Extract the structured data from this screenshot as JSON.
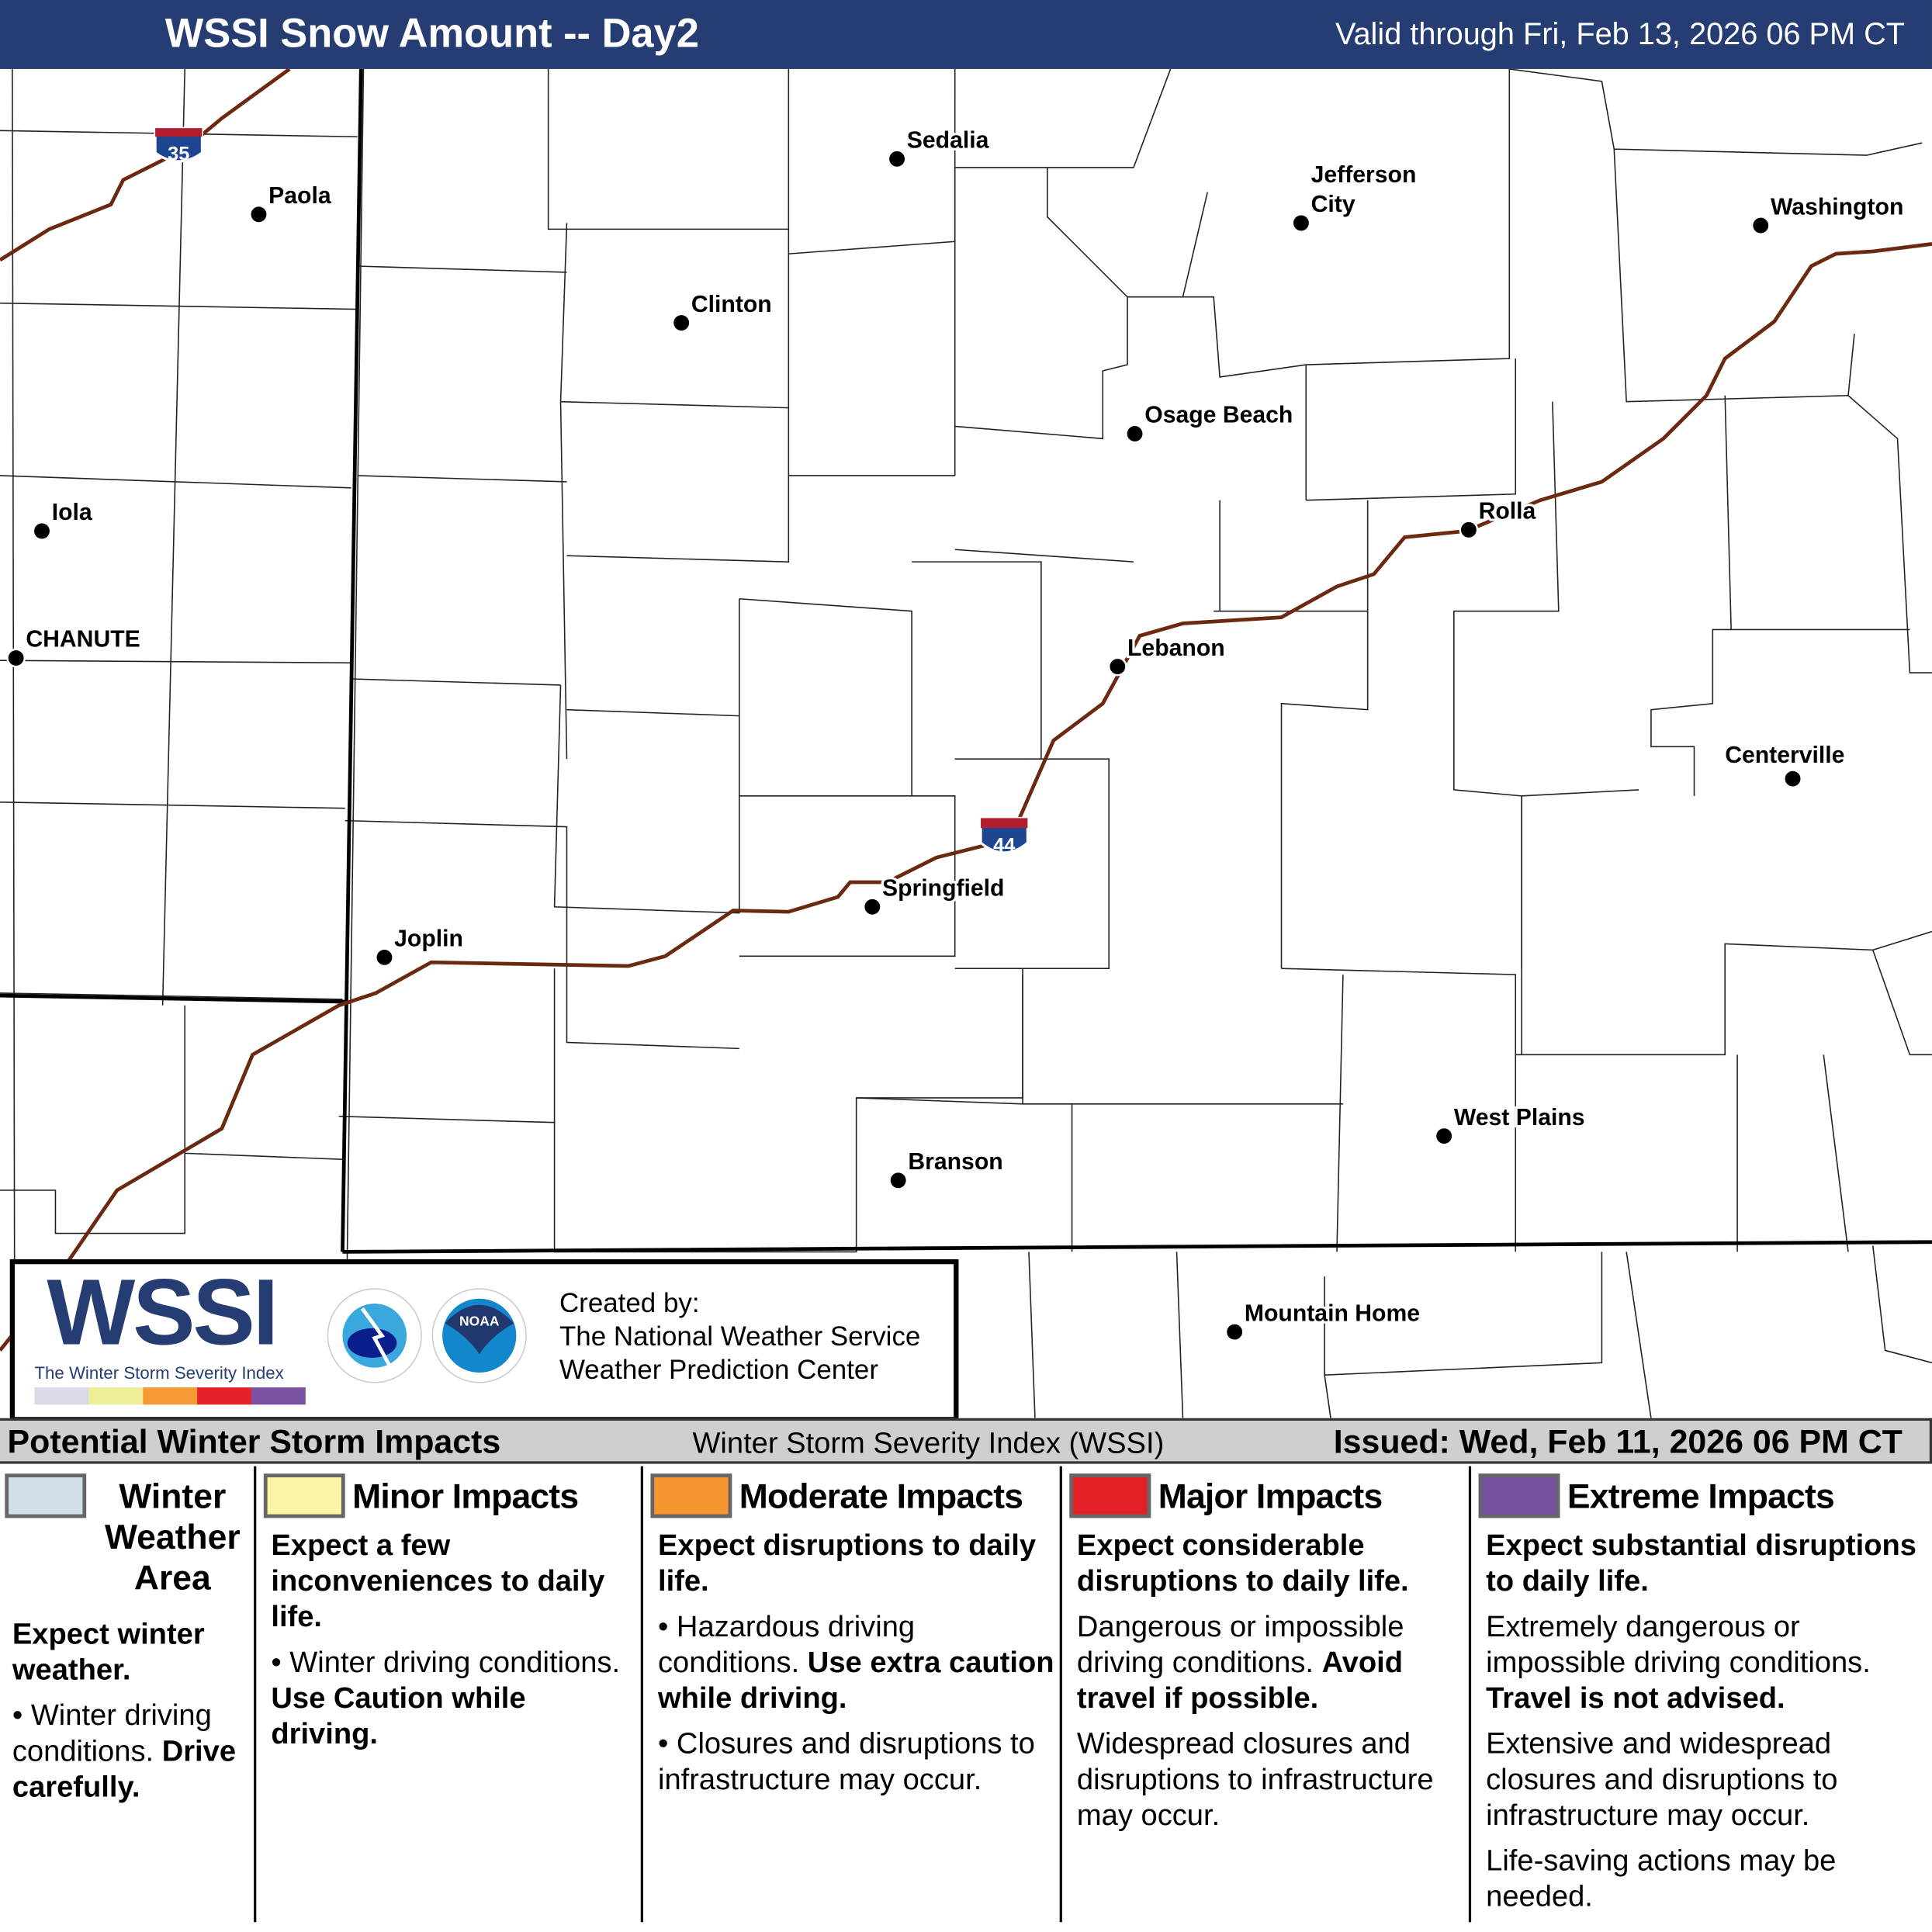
{
  "header": {
    "title": "WSSI Snow Amount -- Day2",
    "valid": "Valid through Fri, Feb 13, 2026 06 PM CT"
  },
  "map": {
    "interstate_color": "#6b2a10",
    "shields": [
      {
        "number": "35"
      },
      {
        "number": "44"
      }
    ],
    "cities": [
      "Sedalia",
      "Paola",
      "Jefferson City",
      "Washington",
      "Clinton",
      "Osage Beach",
      "Iola",
      "Rolla",
      "CHANUTE",
      "Lebanon",
      "Centerville",
      "Springfield",
      "Joplin",
      "West Plains",
      "Branson",
      "Mountain Home"
    ]
  },
  "logo": {
    "wordmark": "WSSI",
    "subtitle": "The Winter Storm Severity Index",
    "seals": [
      "NATIONAL WEATHER SERVICE",
      "NOAA"
    ],
    "created_by": [
      "Created by:",
      "The National Weather Service",
      "Weather Prediction Center"
    ],
    "bar_colors": [
      "#d9d9e8",
      "#eeee99",
      "#f59a35",
      "#e5212a",
      "#7b52a1"
    ]
  },
  "band": {
    "left": "Potential Winter Storm Impacts",
    "center": "Winter Storm Severity Index (WSSI)",
    "issued": "Issued: Wed, Feb 11, 2026 06 PM CT"
  },
  "legend": [
    {
      "color": "#d3dfe8",
      "title": "Winter Weather Area",
      "lead": "Expect winter weather.",
      "text1": "Winter driving conditions.",
      "bold1": "Drive carefully."
    },
    {
      "color": "#fbf6a6",
      "title": "Minor Impacts",
      "lead": "Expect a few inconveniences to daily life.",
      "text1": "Winter driving conditions.",
      "bold1": "Use Caution while driving."
    },
    {
      "color": "#f7962f",
      "title": "Moderate Impacts",
      "lead": "Expect disruptions to daily life.",
      "text1": "Hazardous driving conditions.",
      "bold1": "Use extra caution while driving.",
      "text2": "Closures and disruptions to infrastructure may occur."
    },
    {
      "color": "#e41f26",
      "title": "Major Impacts",
      "lead": "Expect considerable disruptions to daily life.",
      "text1": "Dangerous or impossible driving conditions.",
      "bold1": "Avoid travel if possible.",
      "text2": "Widespread closures and disruptions to infrastructure may occur."
    },
    {
      "color": "#7653a0",
      "title": "Extreme Impacts",
      "lead": "Expect substantial disruptions to daily life.",
      "text1": "Extremely dangerous or impossible driving conditions.",
      "bold1": "Travel is not advised.",
      "text2": "Extensive and widespread closures and disruptions to infrastructure may occur.",
      "text3": "Life-saving actions may be needed."
    }
  ]
}
